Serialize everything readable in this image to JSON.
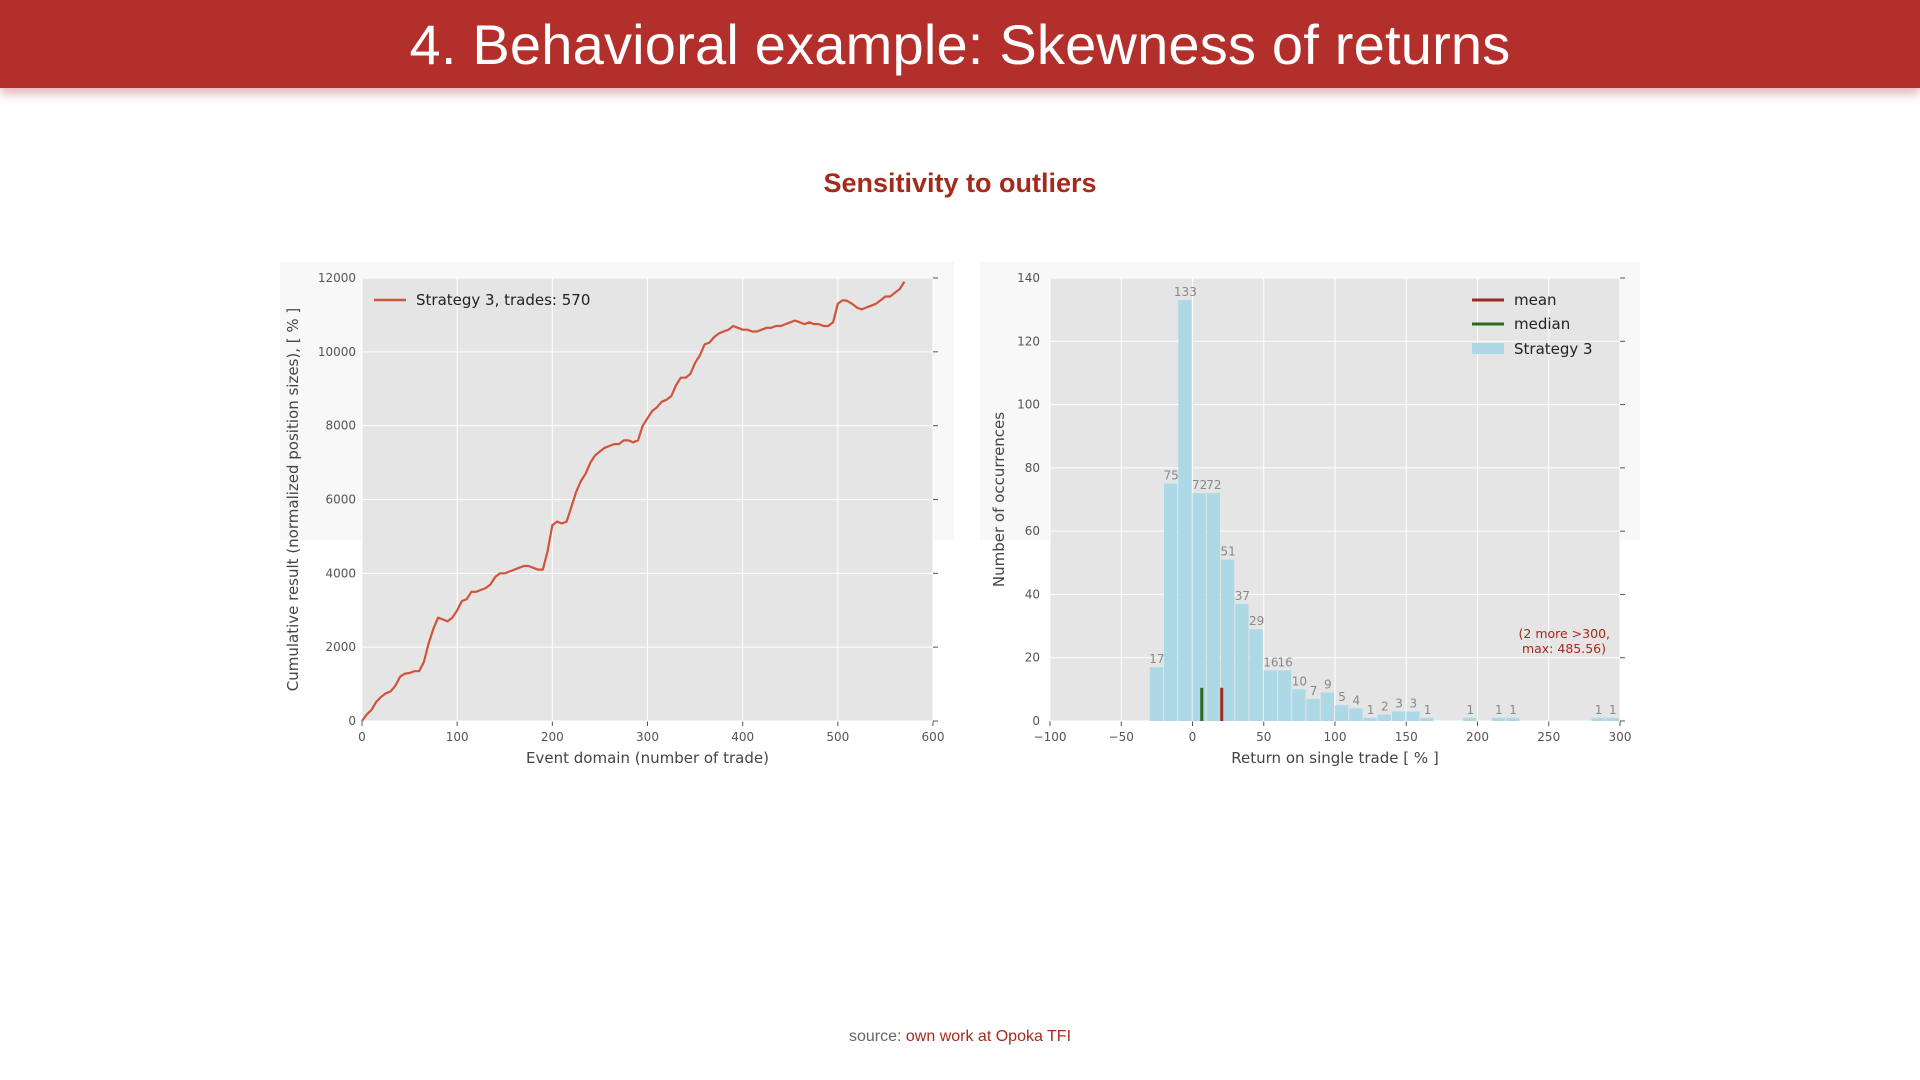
{
  "slide": {
    "title": "4. Behavioral example: Skewness of returns",
    "subtitle": "Sensitivity to outliers",
    "source_prefix": "source:",
    "source_link": "own work at Opoka TFI"
  },
  "colors": {
    "banner": "#b32f2b",
    "accent_text": "#a52a1e",
    "line": "#d0543c",
    "bar": "#add8e6",
    "mean": "#9b2a22",
    "median": "#2a6a1e",
    "plot_bg": "#e5e5e5"
  },
  "chart_data": [
    {
      "type": "line",
      "xlabel": "Event domain (number of trade)",
      "ylabel": "Cumulative result (normalized position sizes), [ % ]",
      "xlim": [
        0,
        600
      ],
      "ylim": [
        0,
        12000
      ],
      "xticks": [
        "0",
        "100",
        "200",
        "300",
        "400",
        "500",
        "600"
      ],
      "yticks": [
        "0",
        "2000",
        "4000",
        "6000",
        "8000",
        "10000",
        "12000"
      ],
      "grid": true,
      "legend_position": "top-left",
      "series": [
        {
          "name": "Strategy 3, trades: 570",
          "x": [
            0,
            5,
            10,
            15,
            20,
            25,
            30,
            35,
            40,
            45,
            50,
            55,
            60,
            65,
            70,
            75,
            80,
            85,
            90,
            95,
            100,
            105,
            110,
            115,
            120,
            125,
            130,
            135,
            140,
            145,
            150,
            155,
            160,
            165,
            170,
            175,
            180,
            185,
            190,
            195,
            200,
            205,
            210,
            215,
            220,
            225,
            230,
            235,
            240,
            245,
            250,
            255,
            260,
            265,
            270,
            275,
            280,
            285,
            290,
            295,
            300,
            305,
            310,
            315,
            320,
            325,
            330,
            335,
            340,
            345,
            350,
            355,
            360,
            365,
            370,
            375,
            380,
            385,
            390,
            395,
            400,
            405,
            410,
            415,
            420,
            425,
            430,
            435,
            440,
            445,
            450,
            455,
            460,
            465,
            470,
            475,
            480,
            485,
            490,
            495,
            500,
            505,
            510,
            515,
            520,
            525,
            530,
            535,
            540,
            545,
            550,
            555,
            560,
            565,
            570
          ],
          "y": [
            0,
            180,
            300,
            520,
            650,
            750,
            800,
            950,
            1200,
            1280,
            1300,
            1350,
            1350,
            1600,
            2100,
            2500,
            2800,
            2750,
            2700,
            2800,
            3000,
            3250,
            3300,
            3500,
            3500,
            3550,
            3600,
            3700,
            3900,
            4000,
            4000,
            4050,
            4100,
            4150,
            4200,
            4200,
            4150,
            4100,
            4100,
            4600,
            5300,
            5400,
            5350,
            5400,
            5800,
            6200,
            6500,
            6700,
            7000,
            7200,
            7300,
            7400,
            7450,
            7500,
            7500,
            7600,
            7600,
            7550,
            7600,
            8000,
            8200,
            8400,
            8500,
            8650,
            8700,
            8800,
            9100,
            9300,
            9300,
            9400,
            9700,
            9900,
            10200,
            10250,
            10400,
            10500,
            10550,
            10600,
            10700,
            10650,
            10600,
            10600,
            10550,
            10550,
            10600,
            10650,
            10650,
            10700,
            10700,
            10750,
            10800,
            10850,
            10800,
            10750,
            10800,
            10750,
            10750,
            10700,
            10700,
            10800,
            11300,
            11400,
            11380,
            11300,
            11200,
            11150,
            11200,
            11250,
            11300,
            11400,
            11500,
            11500,
            11600,
            11700,
            11900
          ]
        }
      ]
    },
    {
      "type": "bar",
      "xlabel": "Return on single trade [ % ]",
      "ylabel": "Number of occurrences",
      "xlim": [
        -100,
        300
      ],
      "ylim": [
        0,
        140
      ],
      "xticks": [
        "−100",
        "−50",
        "0",
        "50",
        "100",
        "150",
        "200",
        "250",
        "300"
      ],
      "yticks": [
        "0",
        "20",
        "40",
        "60",
        "80",
        "100",
        "120",
        "140"
      ],
      "grid": true,
      "legend_position": "top-right",
      "bin_width": 10,
      "bin_start": [
        -30,
        -20,
        -10,
        0,
        10,
        20,
        30,
        40,
        50,
        60,
        70,
        80,
        90,
        100,
        110,
        120,
        130,
        140,
        150,
        160,
        190,
        210,
        220,
        280,
        290
      ],
      "values": [
        17,
        75,
        133,
        72,
        72,
        51,
        37,
        29,
        16,
        16,
        10,
        7,
        9,
        5,
        4,
        1,
        2,
        3,
        3,
        1,
        1,
        1,
        1,
        1,
        1
      ],
      "labels": [
        "17",
        "75",
        "133",
        "72",
        "72",
        "51",
        "37",
        "29",
        "16",
        "16",
        "10",
        "7",
        "9",
        "5",
        "4",
        "1",
        "2",
        "3",
        "3",
        "1",
        "1",
        "1",
        "1",
        "1",
        "1"
      ],
      "mean": 20.5,
      "median": 6.5,
      "legend": [
        "mean",
        "median",
        "Strategy 3"
      ],
      "annotation": [
        "(2 more >300,",
        "max: 485.56)"
      ]
    }
  ]
}
